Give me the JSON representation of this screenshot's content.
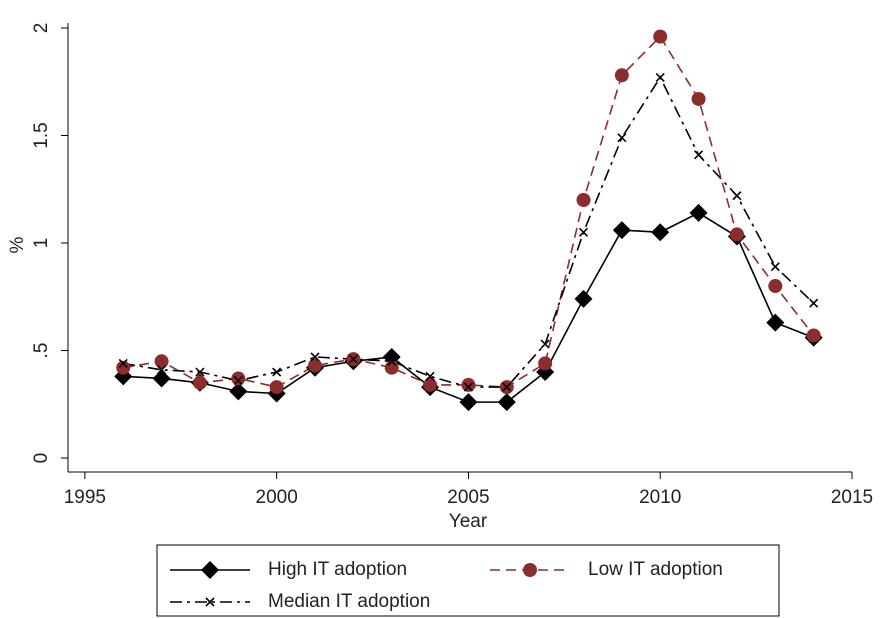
{
  "chart_data": {
    "type": "line",
    "x": [
      1996,
      1997,
      1998,
      1999,
      2000,
      2001,
      2002,
      2003,
      2004,
      2005,
      2006,
      2007,
      2008,
      2009,
      2010,
      2011,
      2012,
      2013,
      2014
    ],
    "series": [
      {
        "name": "High IT adoption",
        "color": "#000000",
        "marker": "diamond",
        "line_style": "solid",
        "values": [
          0.38,
          0.37,
          0.35,
          0.31,
          0.3,
          0.42,
          0.45,
          0.47,
          0.33,
          0.26,
          0.26,
          0.4,
          0.74,
          1.06,
          1.05,
          1.14,
          1.03,
          0.63,
          0.56
        ]
      },
      {
        "name": "Low IT adoption",
        "color": "#8c2d2d",
        "marker": "circle",
        "line_style": "dashed",
        "values": [
          0.42,
          0.45,
          0.35,
          0.37,
          0.33,
          0.43,
          0.46,
          0.42,
          0.34,
          0.34,
          0.33,
          0.44,
          1.2,
          1.78,
          1.96,
          1.67,
          1.04,
          0.8,
          0.57
        ]
      },
      {
        "name": "Median IT adoption",
        "color": "#000000",
        "marker": "x",
        "line_style": "dashdot",
        "values": [
          0.44,
          0.41,
          0.4,
          0.36,
          0.4,
          0.47,
          0.46,
          0.45,
          0.38,
          0.33,
          0.33,
          0.53,
          1.05,
          1.49,
          1.77,
          1.41,
          1.22,
          0.89,
          0.72
        ]
      }
    ],
    "x_label": "Year",
    "y_label": "%",
    "xlim": [
      1994.56,
      2015
    ],
    "xticks": [
      1995,
      2000,
      2005,
      2010,
      2015
    ],
    "ylim": [
      -0.065,
      2
    ],
    "yticks": [
      0,
      {
        "value": 0.5,
        "label": ".5"
      },
      1,
      1.5,
      2
    ],
    "grid": false,
    "legend": "bottom"
  }
}
